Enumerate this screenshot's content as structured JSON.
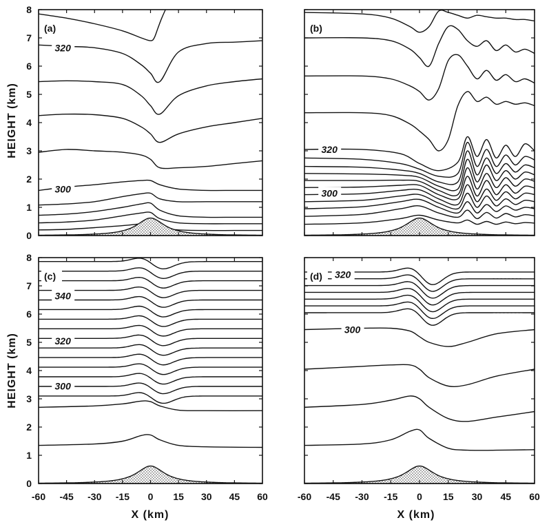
{
  "figure": {
    "ylabel": "HEIGHT (km)",
    "xlabel": "X (km)"
  },
  "chart_data": [
    {
      "type": "line",
      "panel": "(a)",
      "xlabel": "",
      "ylabel": "HEIGHT (km)",
      "xlim": [
        -60,
        60
      ],
      "ylim": [
        0,
        8
      ],
      "xticks": [],
      "yticks": [
        0,
        1,
        2,
        3,
        4,
        5,
        6,
        7,
        8
      ],
      "grid": false,
      "terrain": {
        "peak_height_km": 0.62,
        "half_width_km": 10
      },
      "contour_labels": [
        {
          "text": "320",
          "x": -47,
          "y": 6.65
        },
        {
          "text": "300",
          "x": -47,
          "y": 1.65
        }
      ],
      "contours": [
        {
          "x": [
            -60,
            -45,
            -30,
            -15,
            -5,
            0,
            5,
            15,
            30,
            45,
            60
          ],
          "y": [
            0.2,
            0.22,
            0.28,
            0.35,
            0.42,
            0.45,
            0.28,
            0.2,
            0.18,
            0.18,
            0.18
          ]
        },
        {
          "x": [
            -60,
            -45,
            -30,
            -15,
            -5,
            0,
            5,
            15,
            30,
            45,
            60
          ],
          "y": [
            0.45,
            0.48,
            0.55,
            0.7,
            0.8,
            0.82,
            0.6,
            0.45,
            0.42,
            0.42,
            0.42
          ]
        },
        {
          "x": [
            -60,
            -45,
            -30,
            -15,
            -5,
            0,
            5,
            15,
            30,
            45,
            60
          ],
          "y": [
            0.72,
            0.76,
            0.85,
            1.0,
            1.12,
            1.15,
            0.9,
            0.7,
            0.65,
            0.65,
            0.65
          ]
        },
        {
          "x": [
            -60,
            -45,
            -30,
            -15,
            -5,
            0,
            5,
            15,
            30,
            45,
            60
          ],
          "y": [
            1.08,
            1.12,
            1.2,
            1.38,
            1.48,
            1.5,
            1.3,
            1.2,
            1.2,
            1.2,
            1.2
          ]
        },
        {
          "x": [
            -60,
            -45,
            -30,
            -15,
            -5,
            0,
            5,
            15,
            30,
            45,
            60
          ],
          "y": [
            1.6,
            1.72,
            1.8,
            1.9,
            1.95,
            1.95,
            1.8,
            1.65,
            1.6,
            1.6,
            1.6
          ]
        },
        {
          "x": [
            -60,
            -45,
            -30,
            -15,
            -5,
            0,
            5,
            15,
            30,
            45,
            60
          ],
          "y": [
            2.95,
            3.05,
            3.0,
            2.95,
            2.85,
            2.7,
            2.4,
            2.4,
            2.45,
            2.55,
            2.65
          ]
        },
        {
          "x": [
            -60,
            -45,
            -30,
            -15,
            -5,
            0,
            5,
            15,
            30,
            45,
            60
          ],
          "y": [
            4.25,
            4.3,
            4.28,
            4.15,
            3.85,
            3.6,
            3.3,
            3.6,
            3.85,
            4.0,
            4.15
          ]
        },
        {
          "x": [
            -60,
            -45,
            -30,
            -15,
            -5,
            0,
            5,
            15,
            30,
            45,
            60
          ],
          "y": [
            5.45,
            5.48,
            5.45,
            5.35,
            4.95,
            4.6,
            4.3,
            4.95,
            5.3,
            5.45,
            5.55
          ]
        },
        {
          "x": [
            -60,
            -45,
            -30,
            -15,
            -5,
            0,
            5,
            15,
            30,
            45,
            60
          ],
          "y": [
            6.75,
            6.7,
            6.65,
            6.45,
            6.05,
            5.75,
            5.45,
            6.5,
            6.8,
            6.85,
            6.9
          ]
        },
        {
          "x": [
            -60,
            -45,
            -30,
            -15,
            -5,
            0,
            2,
            4,
            6,
            8
          ],
          "y": [
            7.85,
            7.7,
            7.5,
            7.25,
            7.0,
            6.9,
            7.0,
            7.35,
            7.7,
            8.0
          ]
        }
      ]
    },
    {
      "type": "line",
      "panel": "(b)",
      "xlabel": "",
      "ylabel": "",
      "xlim": [
        -60,
        60
      ],
      "ylim": [
        0,
        8
      ],
      "xticks": [],
      "yticks": [],
      "grid": false,
      "terrain": {
        "peak_height_km": 0.62,
        "half_width_km": 10
      },
      "contour_labels": [
        {
          "text": "320",
          "x": -47,
          "y": 3.05
        },
        {
          "text": "300",
          "x": -47,
          "y": 1.5
        }
      ],
      "contours": [
        {
          "x": [
            -60,
            -30,
            -10,
            0,
            10,
            20,
            25,
            30,
            35,
            40,
            45,
            50,
            55,
            60
          ],
          "y": [
            0.4,
            0.45,
            0.6,
            0.72,
            0.55,
            0.45,
            0.55,
            0.4,
            0.5,
            0.4,
            0.48,
            0.42,
            0.46,
            0.44
          ]
        },
        {
          "x": [
            -60,
            -30,
            -10,
            0,
            10,
            20,
            25,
            30,
            35,
            40,
            45,
            50,
            55,
            60
          ],
          "y": [
            0.68,
            0.75,
            0.95,
            1.05,
            0.8,
            0.65,
            0.9,
            0.6,
            0.82,
            0.62,
            0.78,
            0.66,
            0.74,
            0.7
          ]
        },
        {
          "x": [
            -60,
            -30,
            -10,
            0,
            10,
            20,
            25,
            30,
            35,
            40,
            45,
            50,
            55,
            60
          ],
          "y": [
            0.95,
            1.02,
            1.2,
            1.28,
            1.0,
            0.8,
            1.2,
            0.8,
            1.1,
            0.85,
            1.05,
            0.9,
            1.0,
            0.95
          ]
        },
        {
          "x": [
            -60,
            -30,
            -10,
            0,
            10,
            20,
            25,
            30,
            35,
            40,
            45,
            50,
            55,
            60
          ],
          "y": [
            1.2,
            1.25,
            1.4,
            1.45,
            1.15,
            0.95,
            1.5,
            1.0,
            1.4,
            1.05,
            1.3,
            1.1,
            1.25,
            1.2
          ]
        },
        {
          "x": [
            -60,
            -30,
            -10,
            0,
            10,
            20,
            25,
            30,
            35,
            40,
            45,
            50,
            55,
            60
          ],
          "y": [
            1.45,
            1.48,
            1.6,
            1.62,
            1.3,
            1.1,
            1.8,
            1.2,
            1.65,
            1.25,
            1.55,
            1.3,
            1.5,
            1.45
          ]
        },
        {
          "x": [
            -60,
            -30,
            -10,
            0,
            10,
            20,
            25,
            30,
            35,
            40,
            45,
            50,
            55,
            60
          ],
          "y": [
            1.7,
            1.72,
            1.78,
            1.78,
            1.45,
            1.3,
            2.1,
            1.4,
            1.95,
            1.45,
            1.8,
            1.5,
            1.75,
            1.68
          ]
        },
        {
          "x": [
            -60,
            -30,
            -10,
            0,
            10,
            20,
            25,
            30,
            35,
            40,
            45,
            50,
            55,
            60
          ],
          "y": [
            1.95,
            1.95,
            1.96,
            1.92,
            1.6,
            1.45,
            2.4,
            1.65,
            2.2,
            1.7,
            2.05,
            1.75,
            2.0,
            1.92
          ]
        },
        {
          "x": [
            -60,
            -30,
            -10,
            0,
            10,
            20,
            25,
            30,
            35,
            40,
            45,
            50,
            55,
            60
          ],
          "y": [
            2.2,
            2.18,
            2.14,
            2.06,
            1.75,
            1.65,
            2.7,
            1.9,
            2.5,
            1.95,
            2.3,
            2.0,
            2.25,
            2.15
          ]
        },
        {
          "x": [
            -60,
            -30,
            -10,
            0,
            10,
            20,
            25,
            30,
            35,
            40,
            45,
            50,
            55,
            60
          ],
          "y": [
            2.45,
            2.42,
            2.32,
            2.2,
            1.9,
            1.9,
            3.0,
            2.15,
            2.75,
            2.2,
            2.55,
            2.25,
            2.5,
            2.4
          ]
        },
        {
          "x": [
            -60,
            -30,
            -10,
            0,
            10,
            20,
            25,
            30,
            35,
            40,
            45,
            50,
            55,
            60
          ],
          "y": [
            2.75,
            2.7,
            2.55,
            2.35,
            2.1,
            2.2,
            3.3,
            2.45,
            3.05,
            2.45,
            2.85,
            2.5,
            2.8,
            2.68
          ]
        },
        {
          "x": [
            -60,
            -30,
            -10,
            0,
            10,
            20,
            25,
            30,
            35,
            40,
            45,
            50,
            55,
            60
          ],
          "y": [
            3.05,
            3.05,
            2.9,
            2.55,
            2.3,
            2.6,
            3.5,
            2.8,
            3.4,
            2.75,
            3.2,
            2.8,
            3.25,
            3.0
          ]
        },
        {
          "x": [
            -60,
            -30,
            -15,
            -5,
            0,
            5,
            10,
            15,
            20,
            25,
            30,
            35,
            40,
            45,
            50,
            55,
            60
          ],
          "y": [
            4.35,
            4.35,
            4.25,
            3.95,
            3.7,
            3.4,
            3.0,
            3.4,
            4.6,
            5.1,
            4.75,
            4.9,
            4.65,
            4.75,
            4.65,
            4.7,
            4.6
          ]
        },
        {
          "x": [
            -60,
            -30,
            -15,
            -5,
            0,
            5,
            10,
            15,
            20,
            25,
            30,
            35,
            40,
            45,
            50,
            55,
            60
          ],
          "y": [
            5.65,
            5.65,
            5.55,
            5.3,
            5.1,
            4.8,
            5.2,
            6.2,
            6.4,
            6.0,
            5.55,
            5.85,
            5.5,
            5.7,
            5.45,
            5.55,
            5.4
          ]
        },
        {
          "x": [
            -60,
            -30,
            -15,
            -5,
            0,
            5,
            10,
            15,
            20,
            25,
            30,
            35,
            40,
            45,
            50,
            55,
            60
          ],
          "y": [
            7.0,
            7.0,
            6.9,
            6.6,
            6.3,
            6.0,
            6.8,
            7.4,
            7.3,
            6.9,
            6.7,
            6.9,
            6.55,
            6.75,
            6.5,
            6.6,
            6.45
          ]
        },
        {
          "x": [
            -60,
            -30,
            -15,
            -5,
            0,
            5,
            10,
            15,
            20,
            25,
            30,
            35,
            40,
            45,
            50,
            55,
            60
          ],
          "y": [
            7.9,
            7.85,
            7.7,
            7.4,
            7.2,
            7.4,
            7.95,
            7.9,
            7.8,
            7.7,
            7.8,
            7.75,
            7.7,
            7.7,
            7.65,
            7.65,
            7.6
          ]
        }
      ]
    },
    {
      "type": "line",
      "panel": "(c)",
      "xlabel": "X (km)",
      "ylabel": "HEIGHT (km)",
      "xlim": [
        -60,
        60
      ],
      "ylim": [
        0,
        8
      ],
      "xticks": [
        -60,
        -45,
        -30,
        -15,
        0,
        15,
        30,
        45,
        60
      ],
      "yticks": [
        0,
        1,
        2,
        3,
        4,
        5,
        6,
        7,
        8
      ],
      "grid": false,
      "terrain": {
        "peak_height_km": 0.62,
        "half_width_km": 10
      },
      "contour_labels": [
        {
          "text": "340",
          "x": -47,
          "y": 6.65
        },
        {
          "text": "320",
          "x": -47,
          "y": 5.05
        },
        {
          "text": "300",
          "x": -47,
          "y": 3.45
        }
      ],
      "contours": [
        {
          "x": [
            -60,
            -30,
            -15,
            -5,
            0,
            5,
            15,
            30,
            60
          ],
          "y": [
            1.35,
            1.4,
            1.5,
            1.7,
            1.72,
            1.55,
            1.35,
            1.3,
            1.28
          ]
        },
        {
          "x": [
            -60,
            -30,
            -15,
            -5,
            0,
            5,
            15,
            30,
            60
          ],
          "y": [
            2.7,
            2.75,
            2.82,
            2.92,
            2.9,
            2.75,
            2.6,
            2.58,
            2.58
          ]
        }
      ],
      "contour_stack": {
        "y_start_km": 3.1,
        "dy_km": 0.34,
        "count": 15,
        "dip_km": 0.32,
        "dip_center_x_km": 5,
        "dip_width_km": 9
      }
    },
    {
      "type": "line",
      "panel": "(d)",
      "xlabel": "X (km)",
      "ylabel": "",
      "xlim": [
        -60,
        60
      ],
      "ylim": [
        0,
        8
      ],
      "xticks": [
        -60,
        -45,
        -30,
        -15,
        0,
        15,
        30,
        45,
        60
      ],
      "yticks": [],
      "grid": false,
      "terrain": {
        "peak_height_km": 0.62,
        "half_width_km": 10
      },
      "contour_labels": [
        {
          "text": "320",
          "x": -40,
          "y": 7.4
        },
        {
          "text": "300",
          "x": -35,
          "y": 5.45
        }
      ],
      "contours": [
        {
          "x": [
            -60,
            -30,
            -15,
            -5,
            0,
            5,
            15,
            25,
            40,
            60
          ],
          "y": [
            1.35,
            1.4,
            1.55,
            1.85,
            1.9,
            1.6,
            1.25,
            1.18,
            1.18,
            1.2
          ]
        },
        {
          "x": [
            -60,
            -30,
            -15,
            -5,
            0,
            5,
            15,
            25,
            40,
            60
          ],
          "y": [
            2.7,
            2.8,
            2.95,
            3.1,
            3.0,
            2.7,
            2.3,
            2.2,
            2.35,
            2.55
          ]
        },
        {
          "x": [
            -60,
            -30,
            -15,
            -5,
            0,
            5,
            15,
            25,
            40,
            60
          ],
          "y": [
            4.05,
            4.15,
            4.2,
            4.2,
            4.05,
            3.75,
            3.45,
            3.5,
            3.8,
            4.05
          ]
        },
        {
          "x": [
            -60,
            -30,
            -15,
            -5,
            0,
            5,
            15,
            25,
            40,
            60
          ],
          "y": [
            5.45,
            5.5,
            5.5,
            5.4,
            5.2,
            5.0,
            4.85,
            5.0,
            5.3,
            5.45
          ]
        }
      ],
      "contour_stack": {
        "y_start_km": 6.05,
        "dy_km": 0.24,
        "count": 7,
        "dip_km": 0.5,
        "dip_center_x_km": 6,
        "dip_width_km": 8
      }
    }
  ]
}
